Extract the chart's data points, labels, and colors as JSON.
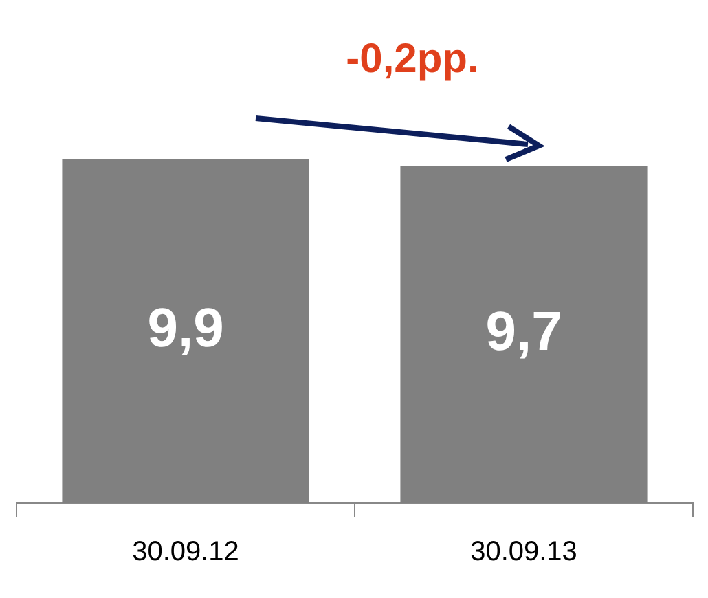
{
  "chart_data": {
    "type": "bar",
    "categories": [
      "30.09.12",
      "30.09.13"
    ],
    "values": [
      9.9,
      9.7
    ],
    "value_labels": [
      "9,9",
      "9,7"
    ],
    "color": "#808080",
    "annotations": [
      "-0,2pp."
    ],
    "grid": false,
    "legend": false
  }
}
